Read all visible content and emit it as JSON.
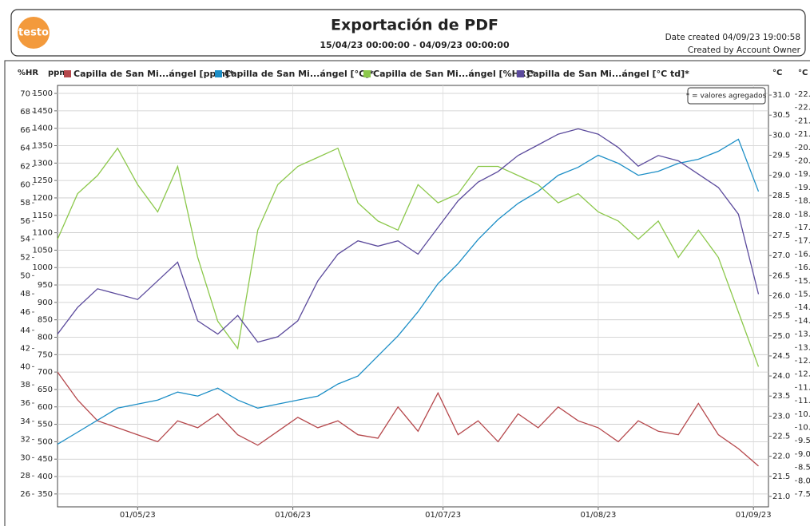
{
  "header": {
    "logo": "testo",
    "title": "Exportación de PDF",
    "period": "15/04/23 00:00:00 - 04/09/23 00:00:00",
    "created": "Date created 04/09/23 19:00:58",
    "author": "Created by Account Owner"
  },
  "chart_data": {
    "type": "line",
    "note": "* = valores agregados",
    "xlim": [
      "2023-04-15",
      "2023-09-04"
    ],
    "xticks": [
      {
        "value": "2023-05-01",
        "label": "01/05/23"
      },
      {
        "value": "2023-06-01",
        "label": "01/06/23"
      },
      {
        "value": "2023-07-01",
        "label": "01/07/23"
      },
      {
        "value": "2023-08-01",
        "label": "01/08/23"
      },
      {
        "value": "2023-09-01",
        "label": "01/09/23"
      }
    ],
    "grid": true,
    "y_axes": [
      {
        "label": "%HR",
        "side": "left",
        "lim": [
          24.6,
          70.9
        ],
        "ticks": [
          26,
          28,
          30,
          32,
          34,
          36,
          38,
          40,
          42,
          44,
          46,
          48,
          50,
          52,
          54,
          56,
          58,
          60,
          62,
          64,
          66,
          68,
          70
        ]
      },
      {
        "label": "ppm",
        "side": "left",
        "lim": [
          313,
          1523
        ],
        "ticks": [
          350,
          400,
          450,
          500,
          550,
          600,
          650,
          700,
          750,
          800,
          850,
          900,
          950,
          1000,
          1050,
          1100,
          1150,
          1200,
          1250,
          1300,
          1350,
          1400,
          1450,
          1500
        ]
      },
      {
        "label": "°C",
        "side": "right",
        "lim": [
          20.74,
          31.24
        ],
        "ticks": [
          {
            "value": 21,
            "label": "21.0"
          },
          21.5,
          {
            "value": 22,
            "label": "22.0"
          },
          22.5,
          {
            "value": 23,
            "label": "23.0"
          },
          23.5,
          {
            "value": 24,
            "label": "24.0"
          },
          24.5,
          {
            "value": 25,
            "label": "25.0"
          },
          25.5,
          {
            "value": 26,
            "label": "26.0"
          },
          26.5,
          {
            "value": 27,
            "label": "27.0"
          },
          27.5,
          {
            "value": 28,
            "label": "28.0"
          },
          28.5,
          {
            "value": 29,
            "label": "29.0"
          },
          29.5,
          {
            "value": 30,
            "label": "30.0"
          },
          30.5,
          {
            "value": 31,
            "label": "31.0"
          }
        ]
      },
      {
        "label": "°C td",
        "side": "right",
        "lim": [
          7.02,
          22.83
        ],
        "ticks": [
          7.5,
          {
            "value": 8,
            "label": "8.0"
          },
          8.5,
          {
            "value": 9,
            "label": "9.0"
          },
          9.5,
          {
            "value": 10,
            "label": "10.0"
          },
          10.5,
          {
            "value": 11,
            "label": "11.0"
          },
          11.5,
          {
            "value": 12,
            "label": "12.0"
          },
          12.5,
          {
            "value": 13,
            "label": "13.0"
          },
          13.5,
          {
            "value": 14,
            "label": "14.0"
          },
          14.5,
          {
            "value": 15,
            "label": "15.0"
          },
          15.5,
          {
            "value": 16,
            "label": "16.0"
          },
          16.5,
          {
            "value": 17,
            "label": "17.0"
          },
          17.5,
          {
            "value": 18,
            "label": "18.0"
          },
          18.5,
          {
            "value": 19,
            "label": "19.0"
          },
          19.5,
          {
            "value": 20,
            "label": "20.0"
          },
          20.5,
          {
            "value": 21,
            "label": "21.0"
          },
          21.5,
          {
            "value": 22,
            "label": "22.0"
          },
          22.5
        ]
      }
    ],
    "x": [
      "2023-04-15",
      "2023-04-19",
      "2023-04-23",
      "2023-04-27",
      "2023-05-01",
      "2023-05-05",
      "2023-05-09",
      "2023-05-13",
      "2023-05-17",
      "2023-05-21",
      "2023-05-25",
      "2023-05-29",
      "2023-06-02",
      "2023-06-06",
      "2023-06-10",
      "2023-06-14",
      "2023-06-18",
      "2023-06-22",
      "2023-06-26",
      "2023-06-30",
      "2023-07-04",
      "2023-07-08",
      "2023-07-12",
      "2023-07-16",
      "2023-07-20",
      "2023-07-24",
      "2023-07-28",
      "2023-08-01",
      "2023-08-05",
      "2023-08-09",
      "2023-08-13",
      "2023-08-17",
      "2023-08-21",
      "2023-08-25",
      "2023-08-29",
      "2023-09-02"
    ],
    "series": [
      {
        "name": "Capilla de San Mi...ángel [ppm]*",
        "color": "#b5474b",
        "axis": 1,
        "values": [
          700,
          620,
          560,
          540,
          520,
          500,
          560,
          540,
          580,
          520,
          490,
          530,
          570,
          540,
          560,
          520,
          510,
          600,
          530,
          640,
          520,
          560,
          500,
          580,
          540,
          600,
          560,
          540,
          500,
          560,
          530,
          520,
          610,
          520,
          480,
          430
        ]
      },
      {
        "name": "Capilla de San Mi...ángel [°C]*",
        "color": "#1c8ec6",
        "axis": 2,
        "values": [
          22.3,
          22.6,
          22.9,
          23.2,
          23.3,
          23.4,
          23.6,
          23.5,
          23.7,
          23.4,
          23.2,
          23.3,
          23.4,
          23.5,
          23.8,
          24.0,
          24.5,
          25.0,
          25.6,
          26.3,
          26.8,
          27.4,
          27.9,
          28.3,
          28.6,
          29.0,
          29.2,
          29.5,
          29.3,
          29.0,
          29.1,
          29.3,
          29.4,
          29.6,
          29.9,
          28.6
        ]
      },
      {
        "name": "Capilla de San Mi...ángel [%HR]*",
        "color": "#8cc84b",
        "axis": 0,
        "values": [
          54,
          59,
          61,
          64,
          60,
          57,
          62,
          52,
          45,
          42,
          55,
          60,
          62,
          63,
          64,
          58,
          56,
          55,
          60,
          58,
          59,
          62,
          62,
          61,
          60,
          58,
          59,
          57,
          56,
          54,
          56,
          52,
          55,
          52,
          46,
          40
        ]
      },
      {
        "name": "Capilla de San Mi...ángel [°C td]*",
        "color": "#5b4a9c",
        "axis": 3,
        "values": [
          13.5,
          14.5,
          15.2,
          15.0,
          14.8,
          15.5,
          16.2,
          14.0,
          13.5,
          14.2,
          13.2,
          13.4,
          14.0,
          15.5,
          16.5,
          17.0,
          16.8,
          17.0,
          16.5,
          17.5,
          18.5,
          19.2,
          19.6,
          20.2,
          20.6,
          21.0,
          21.2,
          21.0,
          20.5,
          19.8,
          20.2,
          20.0,
          19.5,
          19.0,
          18.0,
          15.0
        ]
      }
    ]
  }
}
